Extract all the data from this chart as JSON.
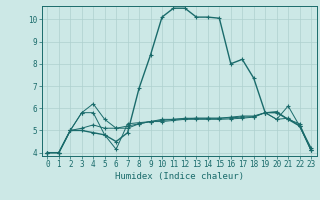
{
  "bg_color": "#cce8e6",
  "grid_color": "#aed0ce",
  "line_color": "#1a6b6b",
  "xlabel": "Humidex (Indice chaleur)",
  "xlim": [
    -0.5,
    23.5
  ],
  "ylim": [
    3.85,
    10.6
  ],
  "yticks": [
    4,
    5,
    6,
    7,
    8,
    9,
    10
  ],
  "xticks": [
    0,
    1,
    2,
    3,
    4,
    5,
    6,
    7,
    8,
    9,
    10,
    11,
    12,
    13,
    14,
    15,
    16,
    17,
    18,
    19,
    20,
    21,
    22,
    23
  ],
  "series": [
    [
      4.0,
      4.0,
      5.0,
      5.0,
      4.9,
      4.8,
      4.5,
      4.9,
      6.9,
      8.4,
      10.1,
      10.5,
      10.5,
      10.1,
      10.1,
      10.05,
      8.0,
      8.2,
      7.35,
      5.8,
      5.8,
      5.5,
      5.2,
      4.2
    ],
    [
      4.0,
      4.0,
      5.0,
      5.1,
      5.25,
      5.1,
      5.1,
      5.1,
      5.3,
      5.4,
      5.5,
      5.5,
      5.55,
      5.55,
      5.55,
      5.55,
      5.6,
      5.65,
      5.65,
      5.8,
      5.85,
      5.5,
      5.3,
      4.1
    ],
    [
      4.0,
      4.0,
      5.0,
      5.8,
      5.8,
      4.8,
      4.15,
      5.3,
      5.35,
      5.4,
      5.45,
      5.5,
      5.52,
      5.55,
      5.55,
      5.55,
      5.57,
      5.6,
      5.62,
      5.8,
      5.5,
      5.55,
      5.2,
      4.1
    ],
    [
      4.0,
      4.0,
      5.0,
      5.8,
      6.2,
      5.5,
      5.1,
      5.2,
      5.3,
      5.4,
      5.4,
      5.45,
      5.5,
      5.5,
      5.5,
      5.5,
      5.52,
      5.55,
      5.6,
      5.8,
      5.5,
      6.1,
      5.2,
      4.1
    ]
  ],
  "tick_fontsize": 5.5,
  "xlabel_fontsize": 6.5
}
